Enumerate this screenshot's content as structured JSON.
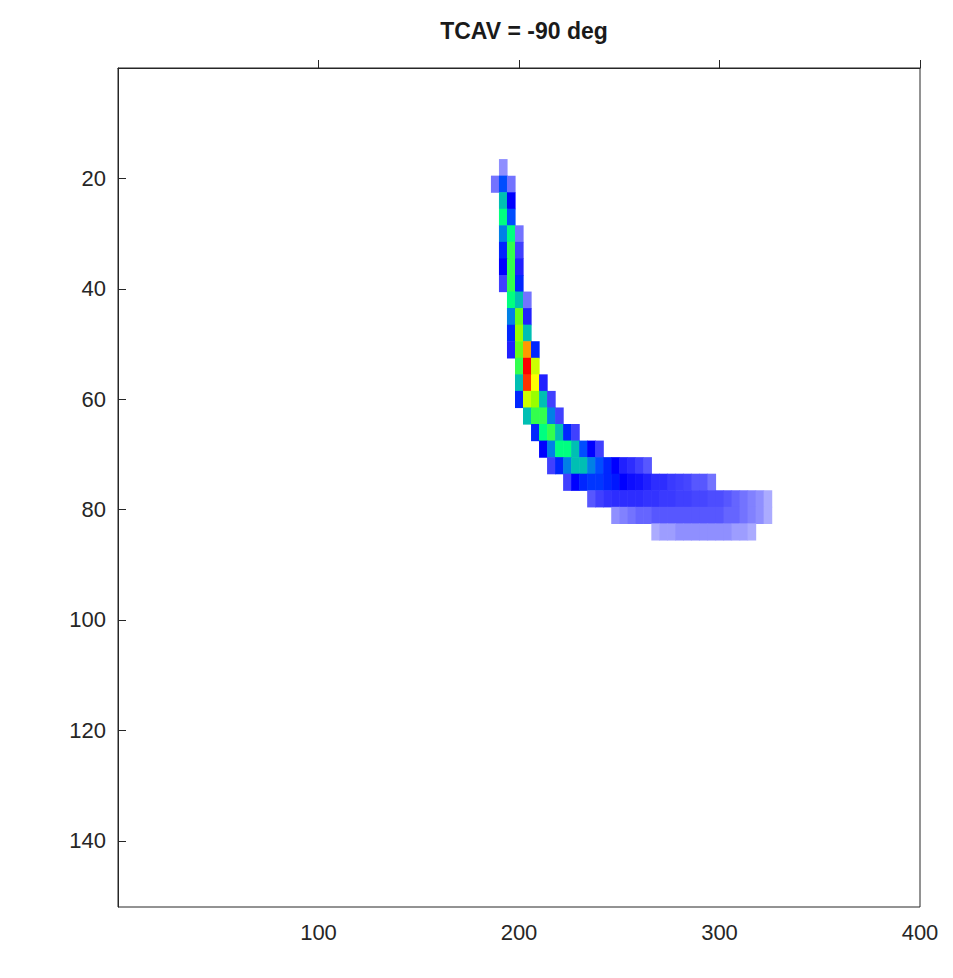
{
  "chart_data": {
    "type": "heatmap",
    "title": "TCAV = -90 deg",
    "xlim": [
      0,
      400
    ],
    "ylim": [
      0,
      152
    ],
    "xticks": [
      100,
      200,
      300,
      400
    ],
    "yticks": [
      20,
      40,
      60,
      80,
      100,
      120,
      140
    ],
    "color_range": [
      0,
      100
    ],
    "cells": [
      [
        192,
        18,
        8
      ],
      [
        188,
        21,
        10
      ],
      [
        192,
        21,
        35
      ],
      [
        196,
        21,
        10
      ],
      [
        192,
        24,
        45
      ],
      [
        196,
        24,
        25
      ],
      [
        192,
        27,
        50
      ],
      [
        196,
        27,
        35
      ],
      [
        192,
        30,
        40
      ],
      [
        196,
        30,
        50
      ],
      [
        200,
        30,
        10
      ],
      [
        192,
        33,
        30
      ],
      [
        196,
        33,
        55
      ],
      [
        200,
        33,
        15
      ],
      [
        192,
        36,
        25
      ],
      [
        196,
        36,
        55
      ],
      [
        200,
        36,
        20
      ],
      [
        192,
        39,
        15
      ],
      [
        196,
        39,
        55
      ],
      [
        200,
        39,
        30
      ],
      [
        196,
        42,
        50
      ],
      [
        200,
        42,
        45
      ],
      [
        204,
        42,
        10
      ],
      [
        196,
        45,
        40
      ],
      [
        200,
        45,
        60
      ],
      [
        204,
        45,
        20
      ],
      [
        196,
        48,
        30
      ],
      [
        200,
        48,
        65
      ],
      [
        204,
        48,
        45
      ],
      [
        196,
        51,
        20
      ],
      [
        200,
        51,
        60
      ],
      [
        204,
        51,
        85
      ],
      [
        208,
        51,
        30
      ],
      [
        200,
        54,
        55
      ],
      [
        204,
        54,
        100
      ],
      [
        208,
        54,
        70
      ],
      [
        200,
        57,
        45
      ],
      [
        204,
        57,
        95
      ],
      [
        208,
        57,
        75
      ],
      [
        212,
        57,
        20
      ],
      [
        200,
        60,
        30
      ],
      [
        204,
        60,
        70
      ],
      [
        208,
        60,
        65
      ],
      [
        212,
        60,
        45
      ],
      [
        216,
        60,
        15
      ],
      [
        204,
        63,
        45
      ],
      [
        208,
        63,
        55
      ],
      [
        212,
        63,
        55
      ],
      [
        216,
        63,
        40
      ],
      [
        220,
        63,
        15
      ],
      [
        208,
        66,
        30
      ],
      [
        212,
        66,
        50
      ],
      [
        216,
        66,
        55
      ],
      [
        220,
        66,
        45
      ],
      [
        224,
        66,
        30
      ],
      [
        228,
        66,
        15
      ],
      [
        212,
        69,
        25
      ],
      [
        216,
        69,
        40
      ],
      [
        220,
        69,
        50
      ],
      [
        224,
        69,
        50
      ],
      [
        228,
        69,
        45
      ],
      [
        232,
        69,
        35
      ],
      [
        236,
        69,
        25
      ],
      [
        240,
        69,
        15
      ],
      [
        216,
        72,
        15
      ],
      [
        220,
        72,
        30
      ],
      [
        224,
        72,
        40
      ],
      [
        228,
        72,
        45
      ],
      [
        232,
        72,
        45
      ],
      [
        236,
        72,
        40
      ],
      [
        240,
        72,
        35
      ],
      [
        244,
        72,
        30
      ],
      [
        248,
        72,
        25
      ],
      [
        252,
        72,
        20
      ],
      [
        256,
        72,
        18
      ],
      [
        260,
        72,
        15
      ],
      [
        264,
        72,
        12
      ],
      [
        224,
        75,
        15
      ],
      [
        228,
        75,
        25
      ],
      [
        232,
        75,
        30
      ],
      [
        236,
        75,
        32
      ],
      [
        240,
        75,
        32
      ],
      [
        244,
        75,
        30
      ],
      [
        248,
        75,
        28
      ],
      [
        252,
        75,
        25
      ],
      [
        256,
        75,
        23
      ],
      [
        260,
        75,
        22
      ],
      [
        264,
        75,
        20
      ],
      [
        268,
        75,
        18
      ],
      [
        272,
        75,
        18
      ],
      [
        276,
        75,
        16
      ],
      [
        280,
        75,
        15
      ],
      [
        284,
        75,
        14
      ],
      [
        288,
        75,
        12
      ],
      [
        292,
        75,
        12
      ],
      [
        296,
        75,
        10
      ],
      [
        236,
        78,
        12
      ],
      [
        240,
        78,
        15
      ],
      [
        244,
        78,
        17
      ],
      [
        248,
        78,
        18
      ],
      [
        252,
        78,
        18
      ],
      [
        256,
        78,
        18
      ],
      [
        260,
        78,
        18
      ],
      [
        264,
        78,
        17
      ],
      [
        268,
        78,
        17
      ],
      [
        272,
        78,
        16
      ],
      [
        276,
        78,
        16
      ],
      [
        280,
        78,
        15
      ],
      [
        284,
        78,
        15
      ],
      [
        288,
        78,
        14
      ],
      [
        292,
        78,
        14
      ],
      [
        296,
        78,
        13
      ],
      [
        300,
        78,
        13
      ],
      [
        304,
        78,
        12
      ],
      [
        308,
        78,
        11
      ],
      [
        312,
        78,
        10
      ],
      [
        316,
        78,
        9
      ],
      [
        320,
        78,
        8
      ],
      [
        324,
        78,
        6
      ],
      [
        248,
        81,
        8
      ],
      [
        252,
        81,
        9
      ],
      [
        256,
        81,
        10
      ],
      [
        260,
        81,
        11
      ],
      [
        264,
        81,
        11
      ],
      [
        268,
        81,
        12
      ],
      [
        272,
        81,
        12
      ],
      [
        276,
        81,
        12
      ],
      [
        280,
        81,
        12
      ],
      [
        284,
        81,
        12
      ],
      [
        288,
        81,
        12
      ],
      [
        292,
        81,
        12
      ],
      [
        296,
        81,
        12
      ],
      [
        300,
        81,
        12
      ],
      [
        304,
        81,
        11
      ],
      [
        308,
        81,
        11
      ],
      [
        312,
        81,
        10
      ],
      [
        316,
        81,
        9
      ],
      [
        320,
        81,
        8
      ],
      [
        324,
        81,
        6
      ],
      [
        268,
        84,
        6
      ],
      [
        272,
        84,
        7
      ],
      [
        276,
        84,
        7
      ],
      [
        280,
        84,
        8
      ],
      [
        284,
        84,
        8
      ],
      [
        288,
        84,
        8
      ],
      [
        292,
        84,
        8
      ],
      [
        296,
        84,
        8
      ],
      [
        300,
        84,
        8
      ],
      [
        304,
        84,
        8
      ],
      [
        308,
        84,
        7
      ],
      [
        312,
        84,
        7
      ],
      [
        316,
        84,
        6
      ]
    ]
  }
}
